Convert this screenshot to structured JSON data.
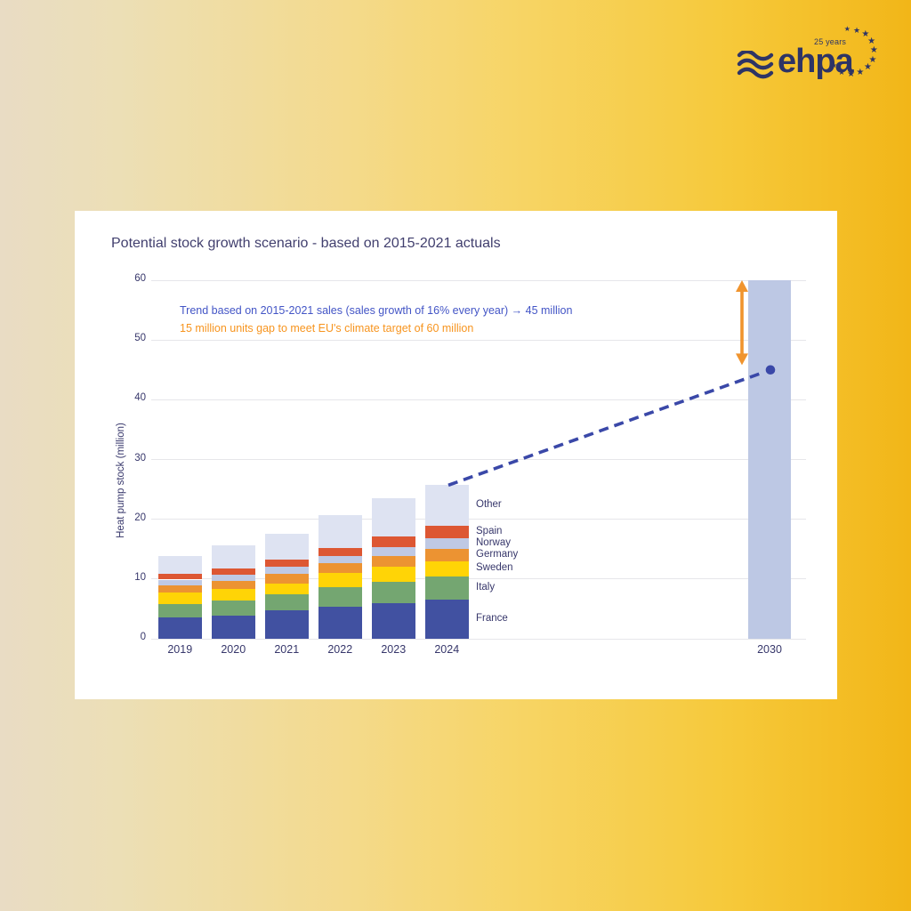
{
  "logo": {
    "brand": "ehpa",
    "badge": "25 years",
    "star_glyph": "★",
    "color": "#2e3465"
  },
  "chart_data": {
    "type": "bar",
    "subtype": "stacked-bar-with-trend-line",
    "title": "Potential stock growth scenario - based on 2015-2021 actuals",
    "xlabel": "",
    "ylabel": "Heat pump stock (million)",
    "ylim": [
      0,
      60
    ],
    "yticks": [
      0,
      10,
      20,
      30,
      40,
      50,
      60
    ],
    "grid": "horizontal",
    "legend_position": "right-of-2024-bar",
    "categories": [
      "2019",
      "2020",
      "2021",
      "2022",
      "2023",
      "2024"
    ],
    "stack_order_bottom_to_top": [
      "France",
      "Italy",
      "Sweden",
      "Germany",
      "Norway",
      "Spain",
      "Other"
    ],
    "series": [
      {
        "name": "France",
        "color": "#4151a1",
        "values": [
          3.5,
          3.9,
          4.7,
          5.3,
          5.9,
          6.5
        ]
      },
      {
        "name": "Italy",
        "color": "#74a671",
        "values": [
          2.3,
          2.5,
          2.7,
          3.4,
          3.7,
          3.9
        ]
      },
      {
        "name": "Sweden",
        "color": "#ffd406",
        "values": [
          1.9,
          2.0,
          1.9,
          2.3,
          2.4,
          2.6
        ]
      },
      {
        "name": "Germany",
        "color": "#ec9332",
        "values": [
          1.3,
          1.3,
          1.6,
          1.6,
          1.9,
          2.1
        ]
      },
      {
        "name": "Norway",
        "color": "#bfc9e4",
        "values": [
          0.9,
          1.0,
          1.1,
          1.2,
          1.5,
          1.7
        ]
      },
      {
        "name": "Spain",
        "color": "#dd5733",
        "values": [
          1.0,
          1.1,
          1.2,
          1.4,
          1.7,
          2.1
        ]
      },
      {
        "name": "Other",
        "color": "#dee3f2",
        "values": [
          2.9,
          3.8,
          4.4,
          5.5,
          6.4,
          6.8
        ]
      }
    ],
    "totals": [
      13.8,
      15.6,
      17.6,
      20.7,
      23.5,
      25.7
    ],
    "target_bar": {
      "label": "2030",
      "value": 60,
      "color": "#bdc8e4"
    },
    "trend_line": {
      "style": "dashed",
      "color": "#3a48a8",
      "start_year": "2024",
      "start_value": 25.7,
      "end_year": "2030",
      "end_value": 45,
      "end_dot": true
    },
    "gap_arrow": {
      "color": "#f0942e",
      "top_value": 60,
      "bottom_value": 45.8
    },
    "annotations": [
      {
        "text": "Trend based on 2015-2021 sales (sales growth of 16% every year) → 45 million",
        "color": "#4355c6"
      },
      {
        "text": "15 million units gap to meet EU's climate target of 60 million",
        "color": "#f7941e"
      }
    ]
  }
}
